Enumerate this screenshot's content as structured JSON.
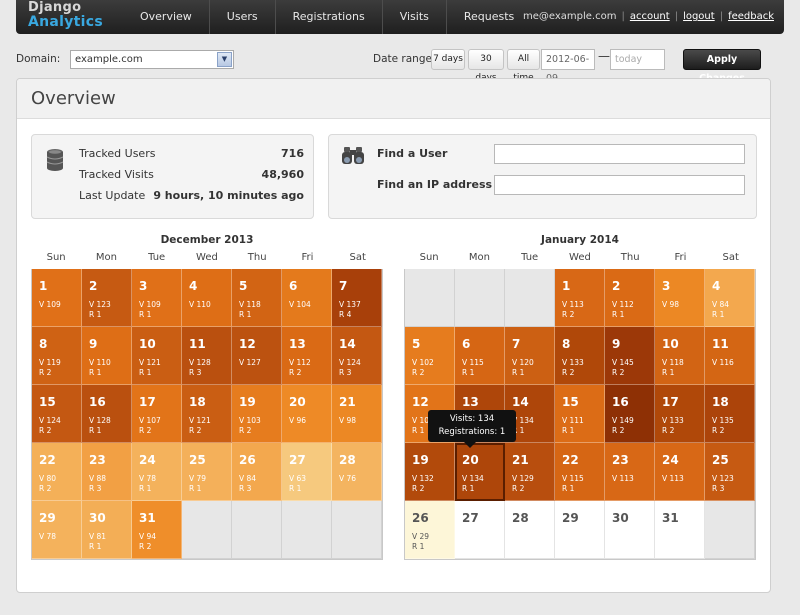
{
  "logo": {
    "line1": "Django",
    "line2": "Analytics"
  },
  "nav": [
    {
      "label": "Overview",
      "name": "nav-overview"
    },
    {
      "label": "Users",
      "name": "nav-users"
    },
    {
      "label": "Registrations",
      "name": "nav-registrations"
    },
    {
      "label": "Visits",
      "name": "nav-visits"
    },
    {
      "label": "Requests",
      "name": "nav-requests"
    }
  ],
  "user": {
    "email": "me@example.com",
    "account": "account",
    "logout": "logout",
    "feedback": "feedback"
  },
  "filters": {
    "domain_label": "Domain:",
    "domain_value": "example.com",
    "date_range_label": "Date range:",
    "btn_7": "7 days",
    "btn_30": "30 days",
    "btn_all": "All time",
    "start_date": "2012-06-09",
    "dash": "—",
    "end_placeholder": "today",
    "apply": "Apply Changes"
  },
  "page_title": "Overview",
  "stats": [
    {
      "label": "Tracked Users",
      "value": "716"
    },
    {
      "label": "Tracked Visits",
      "value": "48,960"
    },
    {
      "label": "Last Update",
      "value": "9 hours, 10 minutes ago"
    }
  ],
  "find": {
    "user_label": "Find a User",
    "ip_label": "Find an IP address"
  },
  "weekdays": [
    "Sun",
    "Mon",
    "Tue",
    "Wed",
    "Thu",
    "Fri",
    "Sat"
  ],
  "tooltip": {
    "visits": "Visits: 134",
    "registrations": "Registrations: 1"
  },
  "calendars": [
    {
      "id": "dec",
      "title": "December 2013",
      "lead_empty": 0,
      "trail_empty": 4,
      "days": [
        {
          "d": "1",
          "v": "V 109",
          "r": "",
          "c": "#e07018"
        },
        {
          "d": "2",
          "v": "V 123",
          "r": "R 1",
          "c": "#c65a12"
        },
        {
          "d": "3",
          "v": "V 109",
          "r": "R 1",
          "c": "#e07018"
        },
        {
          "d": "4",
          "v": "V 110",
          "r": "",
          "c": "#de6e16"
        },
        {
          "d": "5",
          "v": "V 118",
          "r": "R 1",
          "c": "#d26414"
        },
        {
          "d": "6",
          "v": "V 104",
          "r": "",
          "c": "#e47a1c"
        },
        {
          "d": "7",
          "v": "V 137",
          "r": "R 4",
          "c": "#a8400a"
        },
        {
          "d": "8",
          "v": "V 119",
          "r": "R 2",
          "c": "#cf6214"
        },
        {
          "d": "9",
          "v": "V 110",
          "r": "R 1",
          "c": "#de6e16"
        },
        {
          "d": "10",
          "v": "V 121",
          "r": "R 1",
          "c": "#ca5e13"
        },
        {
          "d": "11",
          "v": "V 128",
          "r": "R 3",
          "c": "#ba500f"
        },
        {
          "d": "12",
          "v": "V 127",
          "r": "",
          "c": "#bc5210"
        },
        {
          "d": "13",
          "v": "V 112",
          "r": "R 2",
          "c": "#da6a15"
        },
        {
          "d": "14",
          "v": "V 124",
          "r": "R 3",
          "c": "#c45812"
        },
        {
          "d": "15",
          "v": "V 124",
          "r": "R 2",
          "c": "#c45812"
        },
        {
          "d": "16",
          "v": "V 128",
          "r": "R 1",
          "c": "#ba500f"
        },
        {
          "d": "17",
          "v": "V 107",
          "r": "R 2",
          "c": "#e27419"
        },
        {
          "d": "18",
          "v": "V 121",
          "r": "R 2",
          "c": "#ca5e13"
        },
        {
          "d": "19",
          "v": "V 103",
          "r": "R 2",
          "c": "#e67c1e"
        },
        {
          "d": "20",
          "v": "V 96",
          "r": "",
          "c": "#ee8a26"
        },
        {
          "d": "21",
          "v": "V 98",
          "r": "",
          "c": "#ec8824"
        },
        {
          "d": "22",
          "v": "V 80",
          "r": "R 2",
          "c": "#f4b058"
        },
        {
          "d": "23",
          "v": "V 88",
          "r": "R 3",
          "c": "#f2a044"
        },
        {
          "d": "24",
          "v": "V 78",
          "r": "R 1",
          "c": "#f4b25c"
        },
        {
          "d": "25",
          "v": "V 79",
          "r": "R 1",
          "c": "#f4b05a"
        },
        {
          "d": "26",
          "v": "V 84",
          "r": "R 3",
          "c": "#f3a84e"
        },
        {
          "d": "27",
          "v": "V 63",
          "r": "R 1",
          "c": "#f6c97e"
        },
        {
          "d": "28",
          "v": "V 76",
          "r": "",
          "c": "#f4b460"
        },
        {
          "d": "29",
          "v": "V 78",
          "r": "",
          "c": "#f4b25c"
        },
        {
          "d": "30",
          "v": "V 81",
          "r": "R 1",
          "c": "#f3ae56"
        },
        {
          "d": "31",
          "v": "V 94",
          "r": "R 2",
          "c": "#ef8e2a"
        }
      ]
    },
    {
      "id": "jan",
      "title": "January 2014",
      "lead_empty": 3,
      "trail_empty": 1,
      "days": [
        {
          "d": "1",
          "v": "V 113",
          "r": "R 2",
          "c": "#d86816"
        },
        {
          "d": "2",
          "v": "V 112",
          "r": "R 1",
          "c": "#da6a15"
        },
        {
          "d": "3",
          "v": "V 98",
          "r": "",
          "c": "#ec8824"
        },
        {
          "d": "4",
          "v": "V 84",
          "r": "R 1",
          "c": "#f3a84e"
        },
        {
          "d": "5",
          "v": "V 102",
          "r": "R 2",
          "c": "#e67c1e"
        },
        {
          "d": "6",
          "v": "V 115",
          "r": "R 1",
          "c": "#d66614"
        },
        {
          "d": "7",
          "v": "V 120",
          "r": "R 1",
          "c": "#cc6013"
        },
        {
          "d": "8",
          "v": "V 133",
          "r": "R 2",
          "c": "#b04809"
        },
        {
          "d": "9",
          "v": "V 145",
          "r": "R 2",
          "c": "#9c3808"
        },
        {
          "d": "10",
          "v": "V 118",
          "r": "R 1",
          "c": "#d26414"
        },
        {
          "d": "11",
          "v": "V 116",
          "r": "",
          "c": "#d46614"
        },
        {
          "d": "12",
          "v": "V 107",
          "r": "R 1",
          "c": "#e27419"
        },
        {
          "d": "13",
          "v": "V 134",
          "r": "R 2",
          "c": "#ae460a"
        },
        {
          "d": "14",
          "v": "V 134",
          "r": "R 1",
          "c": "#ae460a"
        },
        {
          "d": "15",
          "v": "V 111",
          "r": "R 1",
          "c": "#dc6c16"
        },
        {
          "d": "16",
          "v": "V 149",
          "r": "R 2",
          "c": "#8e3005"
        },
        {
          "d": "17",
          "v": "V 133",
          "r": "R 2",
          "c": "#b04809"
        },
        {
          "d": "18",
          "v": "V 135",
          "r": "R 2",
          "c": "#ac440a"
        },
        {
          "d": "19",
          "v": "V 132",
          "r": "R 2",
          "c": "#b24a0b"
        },
        {
          "d": "20",
          "v": "V 134",
          "r": "R 1",
          "c": "#ae460a",
          "sel": true
        },
        {
          "d": "21",
          "v": "V 129",
          "r": "R 2",
          "c": "#b84e0e"
        },
        {
          "d": "22",
          "v": "V 115",
          "r": "R 1",
          "c": "#d66614"
        },
        {
          "d": "23",
          "v": "V 113",
          "r": "",
          "c": "#d86816"
        },
        {
          "d": "24",
          "v": "V 113",
          "r": "",
          "c": "#d86816"
        },
        {
          "d": "25",
          "v": "V 123",
          "r": "R 3",
          "c": "#c65a12"
        },
        {
          "d": "26",
          "v": "V 29",
          "r": "R 1",
          "c": "#fdf6d8",
          "light": true
        },
        {
          "d": "27",
          "future": true
        },
        {
          "d": "28",
          "future": true
        },
        {
          "d": "29",
          "future": true
        },
        {
          "d": "30",
          "future": true
        },
        {
          "d": "31",
          "future": true
        }
      ]
    }
  ]
}
